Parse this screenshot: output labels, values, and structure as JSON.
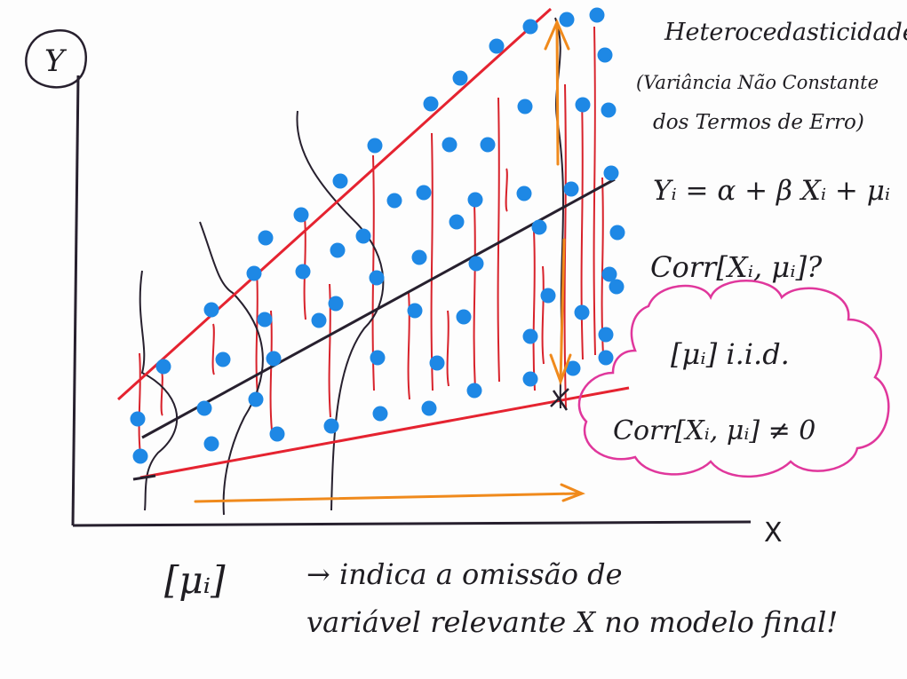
{
  "axes": {
    "y_label": "Y",
    "x_label": "X"
  },
  "title": {
    "line1": "Heterocedasticidade",
    "line2": "(Variância Não Constante",
    "line3": "dos Termos de Erro)"
  },
  "equations": {
    "model": "Yᵢ = α + β Xᵢ + μᵢ",
    "corr_question": "Corr[Xᵢ, μᵢ]?",
    "iid": "[μᵢ] i.i.d.",
    "corr_not_zero": "Corr[Xᵢ, μᵢ] ≠ 0"
  },
  "footer": {
    "term": "[μᵢ]",
    "line1": "→ indica a omissão de",
    "line2": "variável relevante X no modelo final!"
  },
  "colors": {
    "points": "#1e88e5",
    "boundary_lines": "#e52330",
    "regression_line": "#27202e",
    "residual_lines": "#d8222b",
    "arrows": "#f08a1c",
    "cloud": "#e0379c"
  },
  "icons": {
    "y_label_circle": "circle-outline",
    "x_arrow": "arrow-right-icon",
    "variance_arrow": "double-arrow-icon"
  }
}
